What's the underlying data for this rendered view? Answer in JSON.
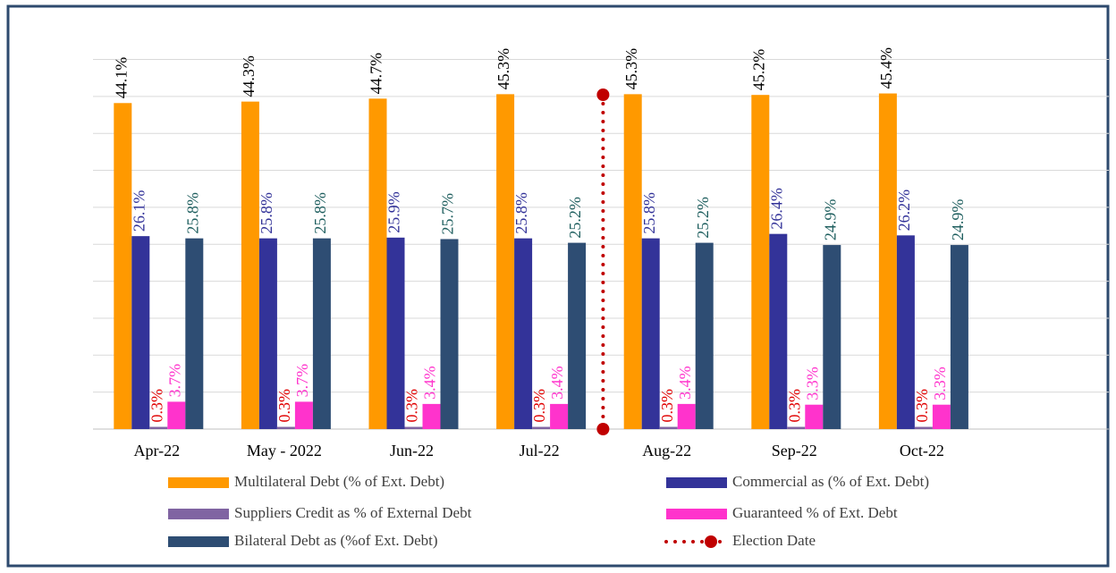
{
  "chart_data": {
    "type": "bar",
    "categories": [
      "Apr-22",
      "May - 2022",
      "Jun-22",
      "Jul-22",
      "Aug-22",
      "Sep-22",
      "Oct-22"
    ],
    "series": [
      {
        "name": "Multilateral Debt (% of Ext. Debt)",
        "color": "#ff9900",
        "label_color": "#000000",
        "values": [
          44.1,
          44.3,
          44.7,
          45.3,
          45.3,
          45.2,
          45.4
        ],
        "value_labels": [
          "44.1%",
          "44.3%",
          "44.7%",
          "45.3%",
          "45.3%",
          "45.2%",
          "45.4%"
        ]
      },
      {
        "name": "Commercial as (% of Ext. Debt)",
        "color": "#333399",
        "label_color": "#333399",
        "values": [
          26.1,
          25.8,
          25.9,
          25.8,
          25.8,
          26.4,
          26.2
        ],
        "value_labels": [
          "26.1%",
          "25.8%",
          "25.9%",
          "25.8%",
          "25.8%",
          "26.4%",
          "26.2%"
        ]
      },
      {
        "name": "Suppliers Credit as % of External Debt",
        "color": "#8064a2",
        "label_color": "#e00000",
        "values": [
          0.3,
          0.3,
          0.3,
          0.3,
          0.3,
          0.3,
          0.3
        ],
        "value_labels": [
          "0.3%",
          "0.3%",
          "0.3%",
          "0.3%",
          "0.3%",
          "0.3%",
          "0.3%"
        ]
      },
      {
        "name": "Guaranteed % of Ext. Debt",
        "color": "#ff33cc",
        "label_color": "#ff33cc",
        "values": [
          3.7,
          3.7,
          3.4,
          3.4,
          3.4,
          3.3,
          3.3
        ],
        "value_labels": [
          "3.7%",
          "3.7%",
          "3.4%",
          "3.4%",
          "3.4%",
          "3.3%",
          "3.3%"
        ]
      },
      {
        "name": "Bilateral Debt as (%of Ext. Debt)",
        "color": "#2e4d73",
        "label_color": "#1f5f5f",
        "values": [
          25.8,
          25.8,
          25.7,
          25.2,
          25.2,
          24.9,
          24.9
        ],
        "value_labels": [
          "25.8%",
          "25.8%",
          "25.7%",
          "25.2%",
          "25.2%",
          "24.9%",
          "24.9%"
        ]
      }
    ],
    "marker_line": {
      "name": "Election Date",
      "color": "#c00000",
      "between": [
        "Jul-22",
        "Aug-22"
      ]
    },
    "ylim": [
      0,
      50
    ],
    "yticks": [
      0,
      5,
      10,
      15,
      20,
      25,
      30,
      35,
      40,
      45,
      50
    ],
    "grid": true
  }
}
